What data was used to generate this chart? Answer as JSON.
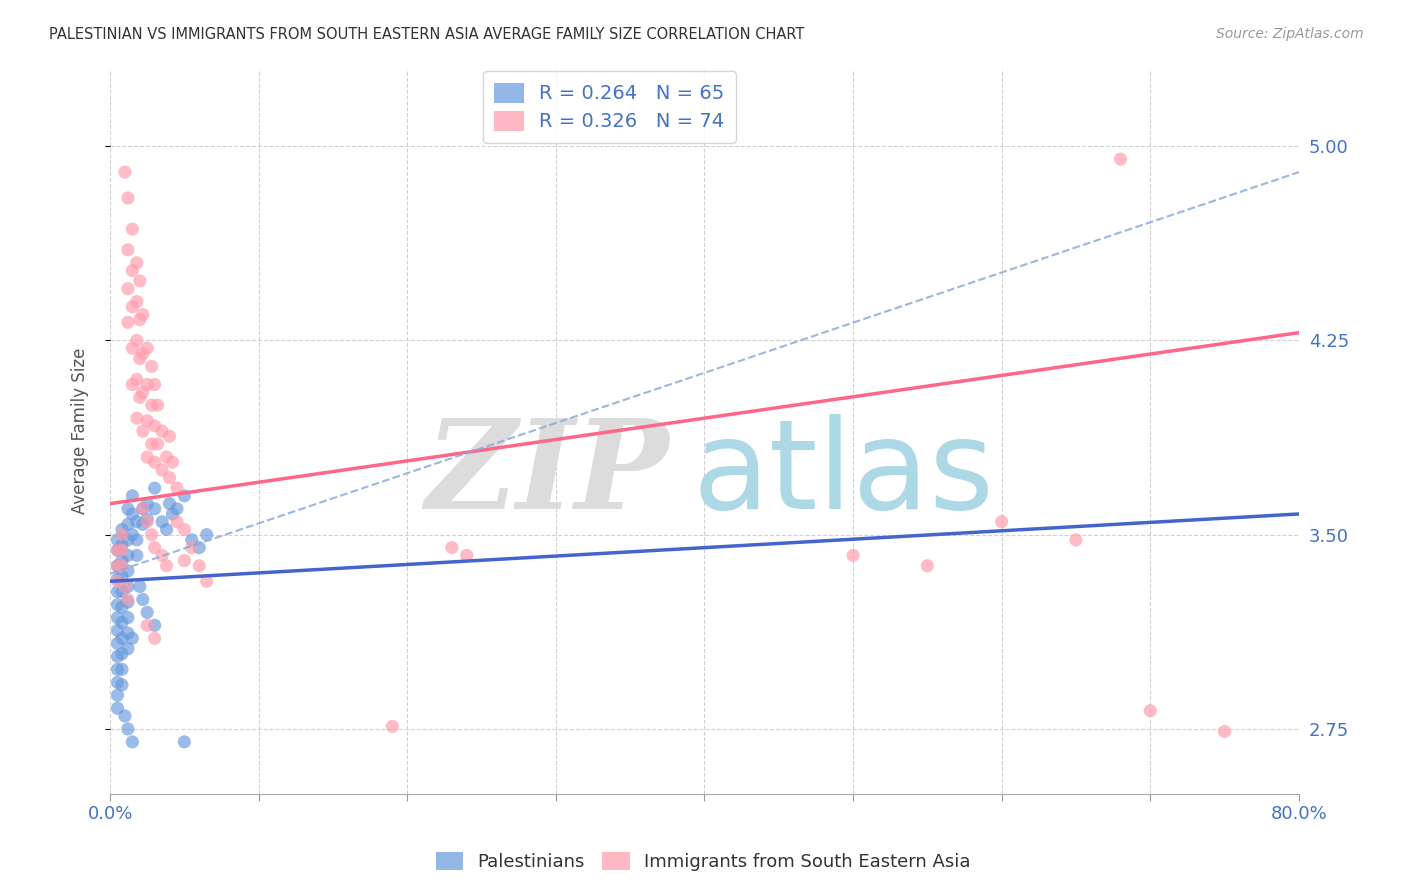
{
  "title": "PALESTINIAN VS IMMIGRANTS FROM SOUTH EASTERN ASIA AVERAGE FAMILY SIZE CORRELATION CHART",
  "source": "Source: ZipAtlas.com",
  "ylabel": "Average Family Size",
  "xmin": 0.0,
  "xmax": 0.8,
  "ymin": 2.5,
  "ymax": 5.3,
  "yticks": [
    2.75,
    3.5,
    4.25,
    5.0
  ],
  "xticks": [
    0.0,
    0.1,
    0.2,
    0.3,
    0.4,
    0.5,
    0.6,
    0.7,
    0.8
  ],
  "xtick_labels_show": [
    "0.0%",
    "",
    "",
    "",
    "",
    "",
    "",
    "",
    "80.0%"
  ],
  "blue_color": "#6699DD",
  "pink_color": "#FF99AA",
  "blue_scatter": [
    [
      0.005,
      3.44
    ],
    [
      0.005,
      3.38
    ],
    [
      0.005,
      3.33
    ],
    [
      0.005,
      3.28
    ],
    [
      0.005,
      3.23
    ],
    [
      0.005,
      3.18
    ],
    [
      0.005,
      3.13
    ],
    [
      0.005,
      3.08
    ],
    [
      0.005,
      3.03
    ],
    [
      0.005,
      2.98
    ],
    [
      0.005,
      2.93
    ],
    [
      0.005,
      2.88
    ],
    [
      0.005,
      2.83
    ],
    [
      0.005,
      3.48
    ],
    [
      0.008,
      3.52
    ],
    [
      0.008,
      3.46
    ],
    [
      0.008,
      3.4
    ],
    [
      0.008,
      3.34
    ],
    [
      0.008,
      3.28
    ],
    [
      0.008,
      3.22
    ],
    [
      0.008,
      3.16
    ],
    [
      0.008,
      3.1
    ],
    [
      0.008,
      3.04
    ],
    [
      0.008,
      2.98
    ],
    [
      0.008,
      2.92
    ],
    [
      0.012,
      3.6
    ],
    [
      0.012,
      3.54
    ],
    [
      0.012,
      3.48
    ],
    [
      0.012,
      3.42
    ],
    [
      0.012,
      3.36
    ],
    [
      0.012,
      3.3
    ],
    [
      0.012,
      3.24
    ],
    [
      0.012,
      3.18
    ],
    [
      0.012,
      3.12
    ],
    [
      0.012,
      3.06
    ],
    [
      0.015,
      3.65
    ],
    [
      0.015,
      3.58
    ],
    [
      0.015,
      3.5
    ],
    [
      0.018,
      3.55
    ],
    [
      0.018,
      3.48
    ],
    [
      0.018,
      3.42
    ],
    [
      0.022,
      3.6
    ],
    [
      0.022,
      3.54
    ],
    [
      0.025,
      3.62
    ],
    [
      0.025,
      3.56
    ],
    [
      0.03,
      3.68
    ],
    [
      0.03,
      3.6
    ],
    [
      0.035,
      3.55
    ],
    [
      0.038,
      3.52
    ],
    [
      0.04,
      3.62
    ],
    [
      0.042,
      3.58
    ],
    [
      0.045,
      3.6
    ],
    [
      0.05,
      3.65
    ],
    [
      0.055,
      3.48
    ],
    [
      0.06,
      3.45
    ],
    [
      0.065,
      3.5
    ],
    [
      0.02,
      3.3
    ],
    [
      0.022,
      3.25
    ],
    [
      0.025,
      3.2
    ],
    [
      0.03,
      3.15
    ],
    [
      0.015,
      3.1
    ],
    [
      0.01,
      2.8
    ],
    [
      0.012,
      2.75
    ],
    [
      0.015,
      2.7
    ],
    [
      0.05,
      2.7
    ]
  ],
  "pink_scatter": [
    [
      0.005,
      3.44
    ],
    [
      0.005,
      3.38
    ],
    [
      0.005,
      3.32
    ],
    [
      0.008,
      3.5
    ],
    [
      0.008,
      3.44
    ],
    [
      0.008,
      3.38
    ],
    [
      0.01,
      4.9
    ],
    [
      0.012,
      4.8
    ],
    [
      0.012,
      4.6
    ],
    [
      0.012,
      4.45
    ],
    [
      0.012,
      4.32
    ],
    [
      0.015,
      4.68
    ],
    [
      0.015,
      4.52
    ],
    [
      0.015,
      4.38
    ],
    [
      0.015,
      4.22
    ],
    [
      0.015,
      4.08
    ],
    [
      0.018,
      4.55
    ],
    [
      0.018,
      4.4
    ],
    [
      0.018,
      4.25
    ],
    [
      0.018,
      4.1
    ],
    [
      0.018,
      3.95
    ],
    [
      0.02,
      4.48
    ],
    [
      0.02,
      4.33
    ],
    [
      0.02,
      4.18
    ],
    [
      0.02,
      4.03
    ],
    [
      0.022,
      4.35
    ],
    [
      0.022,
      4.2
    ],
    [
      0.022,
      4.05
    ],
    [
      0.022,
      3.9
    ],
    [
      0.025,
      4.22
    ],
    [
      0.025,
      4.08
    ],
    [
      0.025,
      3.94
    ],
    [
      0.025,
      3.8
    ],
    [
      0.028,
      4.15
    ],
    [
      0.028,
      4.0
    ],
    [
      0.028,
      3.85
    ],
    [
      0.03,
      4.08
    ],
    [
      0.03,
      3.92
    ],
    [
      0.03,
      3.78
    ],
    [
      0.032,
      4.0
    ],
    [
      0.032,
      3.85
    ],
    [
      0.035,
      3.9
    ],
    [
      0.035,
      3.75
    ],
    [
      0.038,
      3.8
    ],
    [
      0.04,
      3.88
    ],
    [
      0.04,
      3.72
    ],
    [
      0.042,
      3.78
    ],
    [
      0.045,
      3.68
    ],
    [
      0.045,
      3.55
    ],
    [
      0.05,
      3.52
    ],
    [
      0.05,
      3.4
    ],
    [
      0.055,
      3.45
    ],
    [
      0.06,
      3.38
    ],
    [
      0.065,
      3.32
    ],
    [
      0.022,
      3.6
    ],
    [
      0.025,
      3.55
    ],
    [
      0.028,
      3.5
    ],
    [
      0.03,
      3.45
    ],
    [
      0.035,
      3.42
    ],
    [
      0.038,
      3.38
    ],
    [
      0.01,
      3.3
    ],
    [
      0.012,
      3.25
    ],
    [
      0.025,
      3.15
    ],
    [
      0.03,
      3.1
    ],
    [
      0.23,
      3.45
    ],
    [
      0.24,
      3.42
    ],
    [
      0.5,
      3.42
    ],
    [
      0.55,
      3.38
    ],
    [
      0.6,
      3.55
    ],
    [
      0.65,
      3.48
    ],
    [
      0.68,
      4.95
    ],
    [
      0.7,
      2.82
    ],
    [
      0.75,
      2.74
    ],
    [
      0.19,
      2.76
    ]
  ],
  "blue_line_x": [
    0.0,
    0.8
  ],
  "blue_line_y": [
    3.32,
    3.58
  ],
  "pink_line_x": [
    0.0,
    0.8
  ],
  "pink_line_y": [
    3.62,
    4.28
  ],
  "dashed_line_x": [
    0.0,
    0.8
  ],
  "dashed_line_y": [
    3.35,
    4.9
  ],
  "watermark_zip": "ZIP",
  "watermark_atlas": "atlas",
  "watermark_color_zip": "#DCDCDC",
  "watermark_color_atlas": "#ADD8E6",
  "title_color": "#333333",
  "axis_color": "#4472C4",
  "grid_color": "#CCCCCC",
  "background_color": "#FFFFFF",
  "legend1_label": "R = 0.264   N = 65",
  "legend2_label": "R = 0.326   N = 74",
  "bottom_legend1": "Palestinians",
  "bottom_legend2": "Immigrants from South Eastern Asia"
}
